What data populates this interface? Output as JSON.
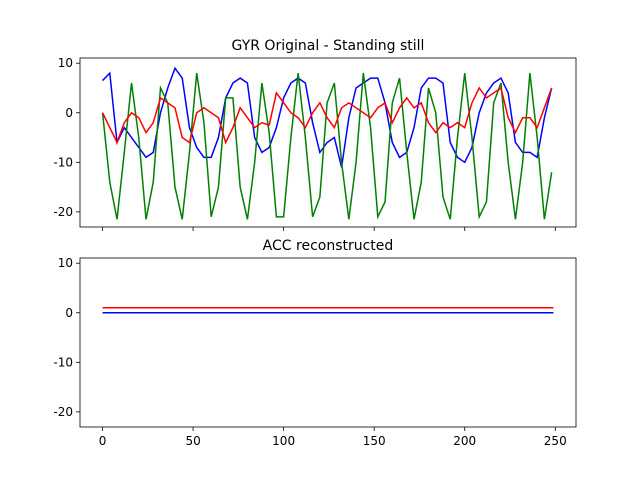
{
  "chart_data": [
    {
      "type": "line",
      "title": "GYR Original - Standing still",
      "x": [
        0,
        4,
        8,
        12,
        16,
        20,
        24,
        28,
        32,
        36,
        40,
        44,
        48,
        52,
        56,
        60,
        64,
        68,
        72,
        76,
        80,
        84,
        88,
        92,
        96,
        100,
        104,
        108,
        112,
        116,
        120,
        124,
        128,
        132,
        136,
        140,
        144,
        148,
        152,
        156,
        160,
        164,
        168,
        172,
        176,
        180,
        184,
        188,
        192,
        196,
        200,
        204,
        208,
        212,
        216,
        220,
        224,
        228,
        232,
        236,
        240,
        244,
        248
      ],
      "series": [
        {
          "color": "#0000ff",
          "values": [
            6.5,
            8,
            -6,
            -3,
            -5,
            -7,
            -9,
            -8,
            0,
            5,
            9,
            7,
            -3,
            -7,
            -9,
            -9,
            -5,
            3,
            6,
            7,
            6,
            -5,
            -8,
            -7,
            -3,
            3,
            6,
            7,
            6,
            -2,
            -8,
            -6,
            -5,
            -11,
            -1,
            5,
            6,
            7,
            7,
            2,
            -6,
            -9,
            -8,
            -3,
            5,
            7,
            7,
            6,
            -6,
            -9,
            -10,
            -7,
            0,
            4,
            6,
            7,
            4,
            -6,
            -8,
            -8,
            -9,
            -1,
            5
          ]
        },
        {
          "color": "#008000",
          "values": [
            0,
            -14,
            -21.5,
            -8,
            6,
            -5,
            -21.5,
            -14,
            5,
            2,
            -15,
            -21.5,
            -8,
            8,
            -2,
            -21,
            -15,
            3,
            3,
            -15,
            -21.5,
            -10,
            6,
            -4,
            -21,
            -21,
            -5,
            8,
            -5,
            -21,
            -17,
            2,
            6,
            -10,
            -21.5,
            -10,
            8,
            -3,
            -21,
            -18,
            2,
            7,
            -8,
            -21.5,
            -14,
            5,
            0,
            -17,
            -21.5,
            -5,
            8,
            -5,
            -21,
            -18,
            2,
            6,
            -10,
            -21.5,
            -10,
            8,
            -5,
            -21.5,
            -12
          ]
        },
        {
          "color": "#ff0000",
          "values": [
            0,
            -3,
            -6,
            -2,
            0,
            -1,
            -4,
            -2,
            3,
            2,
            1,
            -5,
            -6,
            0,
            1,
            0,
            -1,
            -6,
            -3,
            1,
            -1,
            -3,
            -2,
            -2.5,
            4,
            2,
            0,
            -1,
            -3,
            0,
            2,
            -1,
            -3,
            1,
            2,
            1,
            0,
            -1,
            1,
            2,
            -2,
            1,
            3,
            1,
            2,
            -2,
            -4,
            -2,
            -3,
            -2,
            -3,
            2,
            5,
            3,
            4,
            5,
            -1,
            -4,
            -1,
            -1,
            -3,
            1,
            5
          ]
        }
      ],
      "xlim": [
        -12.45,
        261.45
      ],
      "xticks": [
        0,
        50,
        100,
        150,
        200,
        250
      ],
      "ylim": [
        -23.05,
        11.05
      ],
      "yticks": [
        -20,
        -10,
        0,
        10
      ]
    },
    {
      "type": "line",
      "title": "ACC reconstructed",
      "x": [
        0,
        249
      ],
      "series": [
        {
          "color": "#ff0000",
          "values": [
            1,
            1
          ]
        },
        {
          "color": "#0000ff",
          "values": [
            0,
            0
          ]
        }
      ],
      "xlim": [
        -12.45,
        261.45
      ],
      "xticks": [
        0,
        50,
        100,
        150,
        200,
        250
      ],
      "ylim": [
        -23.05,
        11.05
      ],
      "yticks": [
        -20,
        -10,
        0,
        10
      ]
    }
  ]
}
